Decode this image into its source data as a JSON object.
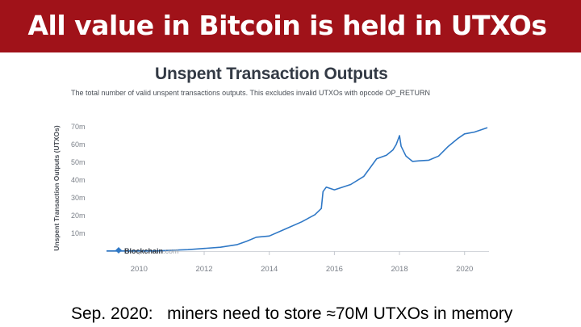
{
  "slide": {
    "title": "All value in Bitcoin is held in UTXOs",
    "caption": "Sep. 2020:   miners need to store ≈70M UTXOs in memory"
  },
  "colors": {
    "title_bar": "#a01219",
    "line": "#2f78c6"
  },
  "chart_data": {
    "type": "line",
    "title": "Unspent Transaction Outputs",
    "subtitle": "The total number of valid unspent transactions outputs. This excludes invalid UTXOs with opcode OP_RETURN",
    "ylabel": "Unspent Transaction Outputs (UTXOs)",
    "xlabel": "",
    "xlim": [
      2009,
      2020.75
    ],
    "ylim": [
      0,
      70
    ],
    "x_ticks": [
      2010,
      2012,
      2014,
      2016,
      2018,
      2020
    ],
    "y_ticks": [
      {
        "value": 10,
        "label": "10m"
      },
      {
        "value": 20,
        "label": "20m"
      },
      {
        "value": 30,
        "label": "30m"
      },
      {
        "value": 40,
        "label": "40m"
      },
      {
        "value": 50,
        "label": "50m"
      },
      {
        "value": 60,
        "label": "60m"
      },
      {
        "value": 70,
        "label": "70m"
      }
    ],
    "grid": false,
    "watermark": "Blockchain.com",
    "series": [
      {
        "unit": "millions of UTXOs",
        "x": [
          2009.0,
          2010.5,
          2011.0,
          2011.5,
          2012.0,
          2012.5,
          2013.0,
          2013.3,
          2013.6,
          2014.0,
          2014.5,
          2015.0,
          2015.4,
          2015.6,
          2015.65,
          2015.75,
          2016.0,
          2016.5,
          2016.9,
          2017.1,
          2017.3,
          2017.6,
          2017.8,
          2017.9,
          2018.0,
          2018.05,
          2018.2,
          2018.4,
          2018.6,
          2018.9,
          2019.2,
          2019.5,
          2019.8,
          2020.0,
          2020.3,
          2020.7
        ],
        "y": [
          0.1,
          0.1,
          0.5,
          0.8,
          1.5,
          2.2,
          3.6,
          5.5,
          7.8,
          8.5,
          12.5,
          16.5,
          20.5,
          24.0,
          33.5,
          36.0,
          34.5,
          37.5,
          42.0,
          47.0,
          52.0,
          54.0,
          57.0,
          60.0,
          65.0,
          59.0,
          53.5,
          50.5,
          50.8,
          51.2,
          53.5,
          59.0,
          63.5,
          66.0,
          67.0,
          69.5
        ]
      }
    ]
  }
}
